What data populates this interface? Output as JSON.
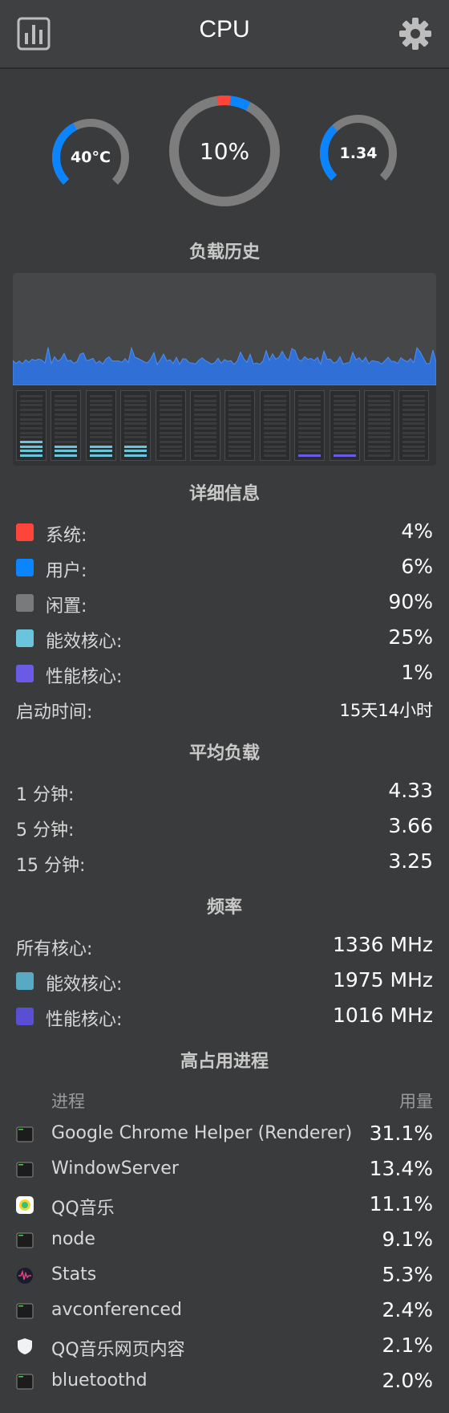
{
  "header": {
    "title": "CPU"
  },
  "icons": {
    "left": "bar-chart-icon",
    "right": "gear-icon"
  },
  "gauges": {
    "temperature": {
      "label": "40°C",
      "fraction": 0.4
    },
    "usage": {
      "label": "10%",
      "system_fraction": 0.04,
      "user_fraction": 0.06
    },
    "load": {
      "label": "1.34",
      "fraction": 0.34
    }
  },
  "sections": {
    "history": "负载历史",
    "details": "详细信息",
    "avg_load": "平均负载",
    "frequency": "频率",
    "top_processes": "高占用进程"
  },
  "history": {
    "area_color": "#2f6fd6",
    "cores": [
      {
        "type": "efficiency",
        "level": 0.3
      },
      {
        "type": "efficiency",
        "level": 0.22
      },
      {
        "type": "efficiency",
        "level": 0.22
      },
      {
        "type": "efficiency",
        "level": 0.22
      },
      {
        "type": "performance",
        "level": 0
      },
      {
        "type": "performance",
        "level": 0
      },
      {
        "type": "performance",
        "level": 0
      },
      {
        "type": "performance",
        "level": 0
      },
      {
        "type": "performance",
        "level": 0.05
      },
      {
        "type": "performance",
        "level": 0.05
      },
      {
        "type": "performance",
        "level": 0
      },
      {
        "type": "performance",
        "level": 0
      }
    ]
  },
  "details": [
    {
      "label": "系统:",
      "value": "4%",
      "color": "#ff453a"
    },
    {
      "label": "用户:",
      "value": "6%",
      "color": "#0a84ff"
    },
    {
      "label": "闲置:",
      "value": "90%",
      "color": "#7a7a7a"
    },
    {
      "label": "能效核心:",
      "value": "25%",
      "color": "#6ac4dc"
    },
    {
      "label": "性能核心:",
      "value": "1%",
      "color": "#6a5be6"
    }
  ],
  "uptime": {
    "label": "启动时间:",
    "value": "15天14小时"
  },
  "avg_load": [
    {
      "label": "1 分钟:",
      "value": "4.33"
    },
    {
      "label": "5 分钟:",
      "value": "3.66"
    },
    {
      "label": "15 分钟:",
      "value": "3.25"
    }
  ],
  "frequency": {
    "all": {
      "label": "所有核心:",
      "value": "1336 MHz"
    },
    "efficiency": {
      "label": "能效核心:",
      "value": "1975 MHz",
      "color": "#58a9c4"
    },
    "performance": {
      "label": "性能核心:",
      "value": "1016 MHz",
      "color": "#5a4fd3"
    }
  },
  "processes": {
    "header_name": "进程",
    "header_usage": "用量",
    "items": [
      {
        "name": "Google Chrome Helper (Renderer)",
        "usage": "31.1%",
        "icon": "terminal-icon"
      },
      {
        "name": "WindowServer",
        "usage": "13.4%",
        "icon": "terminal-icon"
      },
      {
        "name": "QQ音乐",
        "usage": "11.1%",
        "icon": "qq-music-icon"
      },
      {
        "name": "node",
        "usage": "9.1%",
        "icon": "terminal-icon"
      },
      {
        "name": "Stats",
        "usage": "5.3%",
        "icon": "stats-icon"
      },
      {
        "name": "avconferenced",
        "usage": "2.4%",
        "icon": "terminal-icon"
      },
      {
        "name": "QQ音乐网页内容",
        "usage": "2.1%",
        "icon": "shield-icon"
      },
      {
        "name": "bluetoothd",
        "usage": "2.0%",
        "icon": "terminal-icon"
      }
    ]
  }
}
